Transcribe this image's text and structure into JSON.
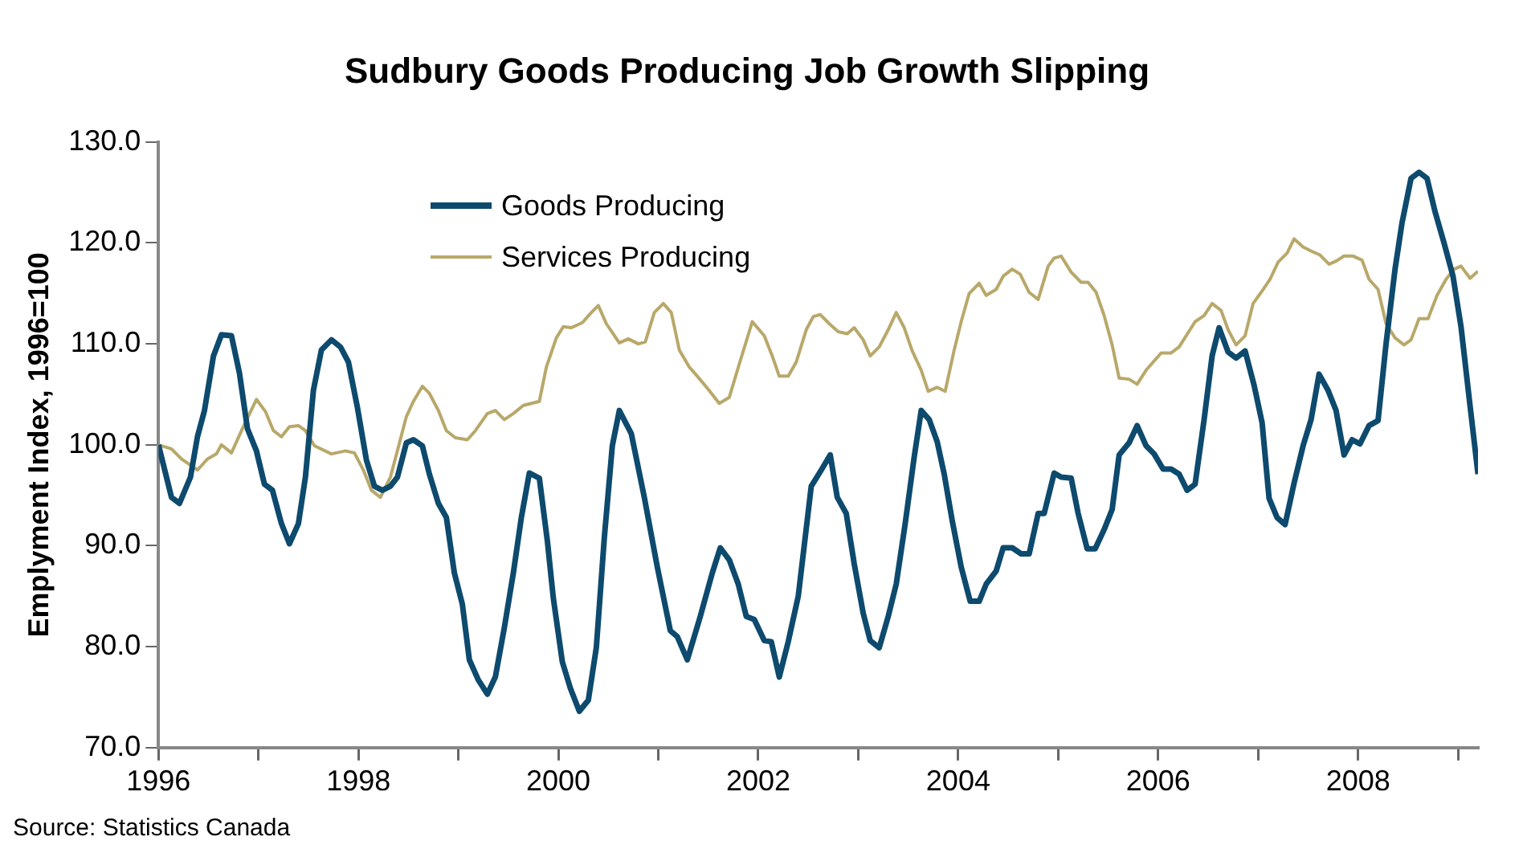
{
  "chart_data": {
    "type": "line",
    "title": "Sudbury Goods Producing Job Growth Slipping",
    "ylabel": "Emplyment Index, 1996=100",
    "annotations": [
      "Source: Statistics Canada"
    ],
    "xlim": [
      1996,
      2009.2
    ],
    "xticks": [
      1996,
      {
        "value": 1997,
        "label": null
      },
      1998,
      {
        "value": 1999,
        "label": null
      },
      2000,
      {
        "value": 2001,
        "label": null
      },
      2002,
      {
        "value": 2003,
        "label": null
      },
      2004,
      {
        "value": 2005,
        "label": null
      },
      2006,
      {
        "value": 2007,
        "label": null
      },
      2008,
      {
        "value": 2009,
        "label": null
      }
    ],
    "ylim": [
      70,
      130
    ],
    "yticks": [
      {
        "value": 70,
        "label": "70.0"
      },
      {
        "value": 80,
        "label": "80.0"
      },
      {
        "value": 90,
        "label": "90.0"
      },
      {
        "value": 100,
        "label": "100.0"
      },
      {
        "value": 110,
        "label": "110.0"
      },
      {
        "value": 120,
        "label": "120.0"
      },
      {
        "value": 130,
        "label": "130.0"
      }
    ],
    "grid": false,
    "legend": "top left",
    "marker": "none",
    "line_style": "solid",
    "series": [
      {
        "name": "Goods Producing",
        "color": "#0d4a6e",
        "x": [
          1996.0,
          1996.13,
          1996.21,
          1996.32,
          1996.39,
          1996.46,
          1996.55,
          1996.63,
          1996.73,
          1996.81,
          1996.89,
          1996.98,
          1997.06,
          1997.14,
          1997.23,
          1997.31,
          1997.4,
          1997.47,
          1997.55,
          1997.63,
          1997.73,
          1997.82,
          1997.9,
          1997.99,
          1998.08,
          1998.16,
          1998.24,
          1998.32,
          1998.39,
          1998.48,
          1998.55,
          1998.64,
          1998.71,
          1998.8,
          1998.88,
          1998.96,
          1999.04,
          1999.11,
          1999.2,
          1999.29,
          1999.37,
          1999.46,
          1999.55,
          1999.63,
          1999.71,
          1999.81,
          1999.89,
          1999.95,
          2000.04,
          2000.12,
          2000.21,
          2000.3,
          2000.38,
          2000.46,
          2000.54,
          2000.61,
          2000.73,
          2000.86,
          2000.99,
          2001.12,
          2001.19,
          2001.29,
          2001.42,
          2001.54,
          2001.62,
          2001.71,
          2001.8,
          2001.88,
          2001.96,
          2002.06,
          2002.13,
          2002.21,
          2002.3,
          2002.4,
          2002.53,
          2002.63,
          2002.72,
          2002.79,
          2002.88,
          2002.96,
          2003.05,
          2003.12,
          2003.21,
          2003.3,
          2003.38,
          2003.47,
          2003.56,
          2003.63,
          2003.71,
          2003.79,
          2003.86,
          2003.94,
          2004.03,
          2004.12,
          2004.21,
          2004.28,
          2004.38,
          2004.45,
          2004.54,
          2004.63,
          2004.71,
          2004.8,
          2004.86,
          2004.96,
          2005.03,
          2005.13,
          2005.2,
          2005.29,
          2005.37,
          2005.46,
          2005.54,
          2005.61,
          2005.71,
          2005.79,
          2005.88,
          2005.96,
          2006.05,
          2006.13,
          2006.21,
          2006.29,
          2006.37,
          2006.46,
          2006.54,
          2006.61,
          2006.7,
          2006.78,
          2006.87,
          2006.96,
          2007.04,
          2007.11,
          2007.19,
          2007.27,
          2007.36,
          2007.45,
          2007.53,
          2007.61,
          2007.7,
          2007.78,
          2007.86,
          2007.94,
          2008.02,
          2008.11,
          2008.2,
          2008.28,
          2008.37,
          2008.44,
          2008.53,
          2008.61,
          2008.69,
          2008.77,
          2008.86,
          2008.95,
          2009.03,
          2009.12,
          2009.2
        ],
        "values": [
          100,
          94.8,
          94.2,
          96.8,
          100.8,
          103.4,
          108.8,
          110.9,
          110.8,
          107.1,
          101.6,
          99.4,
          96.1,
          95.5,
          92.2,
          90.2,
          92.2,
          96.8,
          105.4,
          109.4,
          110.4,
          109.7,
          108.2,
          103.7,
          98.5,
          95.9,
          95.5,
          95.9,
          96.8,
          100.2,
          100.5,
          99.9,
          97.1,
          94.2,
          92.8,
          87.3,
          84.2,
          78.7,
          76.7,
          75.3,
          77,
          81.9,
          87.3,
          92.8,
          97.2,
          96.7,
          90.5,
          84.8,
          78.5,
          75.9,
          73.6,
          74.7,
          79.9,
          90.8,
          99.9,
          103.4,
          101.1,
          94.8,
          87.9,
          81.6,
          81,
          78.7,
          83,
          87.3,
          89.8,
          88.6,
          86.2,
          83,
          82.7,
          80.6,
          80.5,
          77,
          80.5,
          85,
          95.9,
          97.5,
          99,
          94.8,
          93.2,
          88.2,
          83.3,
          80.6,
          79.9,
          83,
          86.2,
          92.2,
          98.8,
          103.4,
          102.5,
          100.3,
          97.1,
          92.5,
          87.9,
          84.5,
          84.5,
          86.2,
          87.5,
          89.8,
          89.8,
          89.2,
          89.2,
          93.2,
          93.2,
          97.2,
          96.8,
          96.7,
          93.2,
          89.7,
          89.7,
          91.6,
          93.6,
          99,
          100.2,
          101.9,
          99.9,
          99.1,
          97.6,
          97.6,
          97.1,
          95.5,
          96.1,
          102.5,
          108.8,
          111.6,
          109.2,
          108.6,
          109.3,
          105.9,
          102.2,
          94.7,
          92.8,
          92.1,
          96.2,
          99.9,
          102.5,
          107,
          105.4,
          103.4,
          99,
          100.5,
          100.1,
          101.9,
          102.4,
          110,
          117.4,
          122,
          126.4,
          127,
          126.4,
          123.1,
          120,
          116.7,
          111.7,
          103.9,
          97.1
        ]
      },
      {
        "name": "Services Producing",
        "color": "#b8a86a",
        "x": [
          1996.0,
          1996.13,
          1996.23,
          1996.39,
          1996.49,
          1996.58,
          1996.63,
          1996.73,
          1996.84,
          1996.98,
          1997.07,
          1997.15,
          1997.23,
          1997.31,
          1997.4,
          1997.47,
          1997.56,
          1997.73,
          1997.87,
          1997.96,
          1998.05,
          1998.13,
          1998.22,
          1998.32,
          1998.39,
          1998.48,
          1998.55,
          1998.64,
          1998.71,
          1998.8,
          1998.88,
          1998.97,
          1999.09,
          1999.17,
          1999.29,
          1999.37,
          1999.46,
          1999.55,
          1999.65,
          1999.81,
          1999.88,
          1999.98,
          2000.05,
          2000.13,
          2000.24,
          2000.33,
          2000.4,
          2000.48,
          2000.61,
          2000.7,
          2000.8,
          2000.87,
          2000.96,
          2001.05,
          2001.13,
          2001.21,
          2001.31,
          2001.39,
          2001.5,
          2001.61,
          2001.71,
          2001.81,
          2001.94,
          2002.06,
          2002.14,
          2002.21,
          2002.3,
          2002.38,
          2002.48,
          2002.55,
          2002.62,
          2002.71,
          2002.8,
          2002.89,
          2002.96,
          2003.05,
          2003.12,
          2003.21,
          2003.3,
          2003.38,
          2003.46,
          2003.54,
          2003.63,
          2003.7,
          2003.79,
          2003.87,
          2003.96,
          2004.03,
          2004.11,
          2004.21,
          2004.28,
          2004.38,
          2004.45,
          2004.54,
          2004.62,
          2004.71,
          2004.8,
          2004.9,
          2004.96,
          2005.03,
          2005.13,
          2005.23,
          2005.3,
          2005.38,
          2005.46,
          2005.54,
          2005.61,
          2005.71,
          2005.79,
          2005.88,
          2006.03,
          2006.13,
          2006.21,
          2006.37,
          2006.46,
          2006.54,
          2006.63,
          2006.7,
          2006.78,
          2006.87,
          2006.95,
          2007.03,
          2007.12,
          2007.2,
          2007.29,
          2007.36,
          2007.45,
          2007.53,
          2007.62,
          2007.71,
          2007.78,
          2007.86,
          2007.95,
          2008.04,
          2008.11,
          2008.2,
          2008.28,
          2008.37,
          2008.46,
          2008.53,
          2008.61,
          2008.7,
          2008.79,
          2008.88,
          2008.96,
          2009.03,
          2009.12,
          2009.2
        ],
        "values": [
          100,
          99.6,
          98.6,
          97.5,
          98.6,
          99.1,
          100,
          99.2,
          101.6,
          104.5,
          103.3,
          101.4,
          100.8,
          101.8,
          101.9,
          101.4,
          99.9,
          99.1,
          99.4,
          99.2,
          97.5,
          95.5,
          94.8,
          96.8,
          99.4,
          102.8,
          104.3,
          105.8,
          105.1,
          103.4,
          101.4,
          100.7,
          100.5,
          101.4,
          103.1,
          103.4,
          102.5,
          103.1,
          103.9,
          104.3,
          107.7,
          110.6,
          111.7,
          111.6,
          112.1,
          113.1,
          113.8,
          112,
          110.1,
          110.5,
          110,
          110.2,
          113.1,
          114,
          113.1,
          109.4,
          107.7,
          106.8,
          105.5,
          104.1,
          104.7,
          108,
          112.2,
          110.8,
          108.8,
          106.8,
          106.8,
          108.2,
          111.4,
          112.7,
          112.9,
          112,
          111.2,
          111,
          111.6,
          110.4,
          108.8,
          109.7,
          111.4,
          113.1,
          111.6,
          109.3,
          107.4,
          105.3,
          105.7,
          105.3,
          109.4,
          112.2,
          115,
          116,
          114.8,
          115.4,
          116.7,
          117.4,
          116.9,
          115.1,
          114.4,
          117.7,
          118.5,
          118.7,
          117.1,
          116.1,
          116.1,
          115.1,
          112.8,
          109.9,
          106.6,
          106.5,
          106,
          107.4,
          109.1,
          109.1,
          109.7,
          112.2,
          112.8,
          114,
          113.3,
          111.4,
          109.9,
          110.8,
          114,
          115.1,
          116.4,
          118.1,
          119,
          120.4,
          119.6,
          119.2,
          118.8,
          117.9,
          118.2,
          118.7,
          118.7,
          118.3,
          116.4,
          115.4,
          112,
          110.6,
          109.9,
          110.4,
          112.5,
          112.5,
          114.8,
          116.4,
          117.4,
          117.7,
          116.5,
          117.2
        ]
      }
    ]
  }
}
